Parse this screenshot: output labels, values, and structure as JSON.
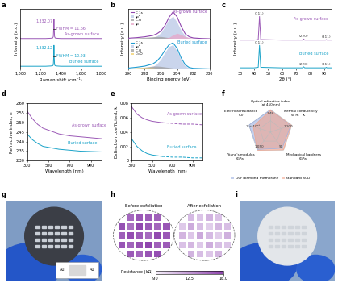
{
  "chart_data": [
    {
      "panel": "a",
      "type": "line",
      "x_label": "Raman shift (cm⁻¹)",
      "y_label": "Intensity (a.u.)",
      "xlim": [
        1000,
        1800
      ],
      "xticks": [
        {
          "value": 1000,
          "label": "1,000"
        },
        {
          "value": 1200,
          "label": "1,200"
        },
        {
          "value": 1400,
          "label": "1,400"
        },
        {
          "value": 1600,
          "label": "1,600"
        },
        {
          "value": 1800,
          "label": "1,800"
        }
      ],
      "ylim": [
        0,
        1.15
      ],
      "tick_labels": "x",
      "x": [
        1000,
        1100,
        1200,
        1250,
        1300,
        1320,
        1326,
        1330,
        1332,
        1334,
        1338,
        1344,
        1360,
        1400,
        1500,
        1600,
        1700,
        1800
      ],
      "series": [
        {
          "label": "As-grown surface",
          "color": "#9b59b6",
          "peak": 1332.07,
          "peak_label": "1,332.07",
          "fwhm": 11.66,
          "fwhm_label": "FWHM = 11.66",
          "values": [
            0.58,
            0.58,
            0.58,
            0.58,
            0.585,
            0.59,
            0.62,
            0.8,
            0.95,
            0.8,
            0.62,
            0.59,
            0.585,
            0.58,
            0.58,
            0.58,
            0.58,
            0.58
          ]
        },
        {
          "label": "Buried surface",
          "color": "#1aa3c8",
          "peak": 1332.12,
          "peak_label": "1,332.12",
          "fwhm": 10.93,
          "fwhm_label": "FWHM = 10.93",
          "values": [
            0.05,
            0.05,
            0.05,
            0.05,
            0.055,
            0.06,
            0.08,
            0.25,
            0.45,
            0.25,
            0.08,
            0.06,
            0.055,
            0.05,
            0.05,
            0.05,
            0.05,
            0.05
          ]
        }
      ]
    },
    {
      "panel": "b",
      "type": "area",
      "x_label": "Binding energy (eV)",
      "y_label": "Intensity (a.u.)",
      "xlim": [
        290,
        280
      ],
      "xticks": [
        290,
        288,
        286,
        284,
        282,
        280
      ],
      "ylim": [
        0,
        1.1
      ],
      "legend": "upper left",
      "x": [
        290,
        289,
        288,
        287,
        286.5,
        286,
        285.5,
        285,
        284.5,
        284,
        283.5,
        283,
        282.5,
        282,
        281,
        280
      ],
      "parts": [
        {
          "annotation": "As-grown surface",
          "series": [
            {
              "name": "C 1s",
              "type": "line",
              "color": "#8e44ad",
              "values": [
                0.02,
                0.04,
                0.07,
                0.12,
                0.18,
                0.28,
                0.48,
                0.78,
                0.98,
                0.8,
                0.45,
                0.18,
                0.07,
                0.03,
                0.01,
                0.0
              ]
            },
            {
              "name": "sp³",
              "type": "area",
              "color": "#b9c7e6",
              "values": [
                0.0,
                0.01,
                0.02,
                0.05,
                0.1,
                0.22,
                0.45,
                0.72,
                0.82,
                0.6,
                0.3,
                0.1,
                0.03,
                0.01,
                0.0,
                0.0
              ]
            },
            {
              "name": "C–O",
              "type": "area",
              "color": "#9e9e9e",
              "values": [
                0.01,
                0.03,
                0.05,
                0.07,
                0.08,
                0.08,
                0.06,
                0.04,
                0.02,
                0.01,
                0.0,
                0.0,
                0.0,
                0.0,
                0.0,
                0.0
              ]
            },
            {
              "name": "sp²",
              "type": "area",
              "color": "#e8a6c8",
              "values": [
                0.0,
                0.0,
                0.0,
                0.0,
                0.0,
                0.01,
                0.02,
                0.05,
                0.14,
                0.2,
                0.15,
                0.08,
                0.04,
                0.02,
                0.0,
                0.0
              ]
            }
          ]
        },
        {
          "annotation": "Buried surface",
          "series": [
            {
              "name": "C 1s",
              "type": "line",
              "color": "#1f9bd1",
              "values": [
                0.03,
                0.06,
                0.1,
                0.18,
                0.28,
                0.45,
                0.68,
                0.88,
                0.95,
                0.75,
                0.4,
                0.15,
                0.05,
                0.02,
                0.01,
                0.0
              ]
            },
            {
              "name": "sp³",
              "type": "area",
              "color": "#b9c7e6",
              "values": [
                0.0,
                0.01,
                0.03,
                0.08,
                0.18,
                0.35,
                0.6,
                0.82,
                0.88,
                0.65,
                0.32,
                0.1,
                0.03,
                0.01,
                0.0,
                0.0
              ]
            },
            {
              "name": "C–O",
              "type": "area",
              "color": "#9e9e9e",
              "values": [
                0.01,
                0.03,
                0.06,
                0.1,
                0.1,
                0.09,
                0.07,
                0.05,
                0.03,
                0.01,
                0.0,
                0.0,
                0.0,
                0.0,
                0.0,
                0.0
              ]
            },
            {
              "name": "C=O",
              "type": "area",
              "color": "#f2d16b",
              "values": [
                0.02,
                0.04,
                0.05,
                0.04,
                0.02,
                0.01,
                0.0,
                0.0,
                0.0,
                0.0,
                0.0,
                0.0,
                0.0,
                0.0,
                0.0,
                0.0
              ]
            }
          ]
        }
      ]
    },
    {
      "panel": "c",
      "type": "line",
      "x_label": "2θ (°)",
      "y_label": "Intensity (a.u.)",
      "xlim": [
        30,
        95
      ],
      "xticks": [
        30,
        40,
        50,
        60,
        70,
        80,
        90
      ],
      "ylim": [
        0,
        1.15
      ],
      "tick_labels": "x",
      "x": [
        30,
        40,
        43,
        43.9,
        44.8,
        60,
        74.5,
        75.3,
        76.1,
        90,
        91.0,
        91.5,
        92.0,
        95
      ],
      "series": [
        {
          "label": "As-grown surface",
          "color": "#9b59b6",
          "values": [
            0.55,
            0.55,
            0.56,
            1.0,
            0.56,
            0.55,
            0.55,
            0.57,
            0.55,
            0.55,
            0.55,
            0.56,
            0.55,
            0.55
          ],
          "peaks": [
            {
              "x": 43.9,
              "label": "(111)"
            },
            {
              "x": 75.3,
              "label": "(220)"
            },
            {
              "x": 91.5,
              "label": "(311)"
            }
          ]
        },
        {
          "label": "Buried surface",
          "color": "#1aa3c8",
          "values": [
            0.02,
            0.02,
            0.03,
            0.45,
            0.03,
            0.02,
            0.02,
            0.04,
            0.02,
            0.02,
            0.02,
            0.03,
            0.02,
            0.02
          ],
          "peaks": [
            {
              "x": 43.9,
              "label": "(111)"
            },
            {
              "x": 75.3,
              "label": "(220)"
            },
            {
              "x": 91.5,
              "label": "(311)"
            }
          ]
        }
      ]
    },
    {
      "panel": "d",
      "type": "line",
      "x_label": "Wavelength (nm)",
      "y_label": "Refractive index, n",
      "xlim": [
        300,
        1000
      ],
      "xticks": [
        300,
        500,
        700,
        900
      ],
      "ylim": [
        2.3,
        2.6
      ],
      "yticks": [
        {
          "value": 2.3,
          "label": "2.30"
        },
        2.35,
        {
          "value": 2.4,
          "label": "2.40"
        },
        2.45,
        {
          "value": 2.5,
          "label": "2.50"
        },
        2.55,
        {
          "value": 2.6,
          "label": "2.60"
        }
      ],
      "x": [
        300,
        350,
        400,
        450,
        500,
        600,
        700,
        800,
        900,
        1000
      ],
      "series": [
        {
          "label": "As-grown surface",
          "color": "#9b59b6",
          "values": [
            2.56,
            2.52,
            2.49,
            2.47,
            2.46,
            2.44,
            2.43,
            2.425,
            2.42,
            2.415
          ]
        },
        {
          "label": "Buried surface",
          "color": "#1aa3c8",
          "values": [
            2.44,
            2.41,
            2.39,
            2.375,
            2.37,
            2.36,
            2.355,
            2.35,
            2.348,
            2.346
          ]
        }
      ]
    },
    {
      "panel": "e",
      "type": "line",
      "x_label": "Wavelength (nm)",
      "y_label": "Extinction coefficient, k",
      "xlim": [
        300,
        1000
      ],
      "xticks": [
        300,
        500,
        700,
        900
      ],
      "ylim": [
        0,
        0.08
      ],
      "yticks": [
        0,
        0.02,
        0.04,
        0.06,
        0.08
      ],
      "series": [
        {
          "label": "As-grown surface",
          "color": "#9b59b6",
          "line_style": "solid",
          "x": [
            300,
            350,
            400,
            450,
            500,
            550,
            600
          ],
          "values": [
            0.075,
            0.065,
            0.06,
            0.057,
            0.055,
            0.054,
            0.053
          ]
        },
        {
          "color": "#9b59b6",
          "line_style": "dashed",
          "x": [
            600,
            700,
            800,
            900,
            1000
          ],
          "values": [
            0.053,
            0.052,
            0.051,
            0.051,
            0.05
          ]
        },
        {
          "label": "Buried surface",
          "color": "#1aa3c8",
          "line_style": "solid",
          "x": [
            300,
            350,
            400,
            450,
            500,
            550,
            600
          ],
          "values": [
            0.03,
            0.02,
            0.014,
            0.01,
            0.008,
            0.007,
            0.006
          ]
        },
        {
          "color": "#1aa3c8",
          "line_style": "dashed",
          "x": [
            600,
            700,
            800,
            900,
            1000
          ],
          "values": [
            0.006,
            0.005,
            0.005,
            0.004,
            0.004
          ]
        }
      ]
    },
    {
      "panel": "f",
      "type": "radar",
      "legend": "upper center",
      "axes": [
        {
          "label": "Optical refractive index\n(at 450 nm)",
          "max": 2.48,
          "max_label": "2.48"
        },
        {
          "label": "Thermal conductivity\nW m⁻¹ K⁻¹",
          "max": 2100,
          "max_label": "2,100"
        },
        {
          "label": "Mechanical hardness\n(GPa)",
          "max": 90,
          "max_label": "90"
        },
        {
          "label": "Young's modulus\n(GPa)",
          "max": 1050,
          "max_label": "1,050"
        },
        {
          "label": "Electrical resistance\n(Ω)",
          "max": 1000000000000000.0,
          "max_label": "1 × 10¹⁵"
        }
      ],
      "series": [
        {
          "name": "Our diamond membrane",
          "color": "#9bb0e0",
          "values": [
            2.43,
            2000,
            80,
            1000,
            1000000000000000.0
          ]
        },
        {
          "name": "Standard SCD",
          "color": "#f0a58f",
          "values": [
            2.38,
            2050,
            88,
            1050,
            800000000000000.0
          ]
        }
      ]
    },
    {
      "panel": "g",
      "type": "image",
      "texts": [
        "Au",
        "Au"
      ]
    },
    {
      "panel": "h",
      "type": "heatmap",
      "maps": [
        {
          "title": "Before exfoliation",
          "cells": [
            [
              null,
              14.5,
              15.2,
              15.0,
              14.8,
              null
            ],
            [
              15.5,
              14.2,
              15.8,
              15.1,
              14.6,
              15.3
            ],
            [
              14.9,
              15.6,
              15.0,
              14.4,
              15.7,
              15.2
            ],
            [
              15.3,
              14.7,
              15.4,
              15.9,
              14.8,
              15.0
            ],
            [
              null,
              15.1,
              14.6,
              15.3,
              15.5,
              null
            ]
          ]
        },
        {
          "title": "After exfoliation",
          "cells": [
            [
              null,
              11.2,
              10.8,
              11.5,
              10.9,
              null
            ],
            [
              10.6,
              11.8,
              11.0,
              10.4,
              11.3,
              11.1
            ],
            [
              11.4,
              10.7,
              11.9,
              11.2,
              10.5,
              11.6
            ],
            [
              10.9,
              11.3,
              10.6,
              11.7,
              11.0,
              10.8
            ],
            [
              null,
              11.5,
              11.1,
              10.7,
              11.4,
              null
            ]
          ]
        }
      ],
      "colorbar": {
        "label": "Resistance (kΩ)",
        "range": [
          9.0,
          16.0
        ],
        "ticks": [
          9.0,
          12.5,
          16.0
        ]
      }
    },
    {
      "panel": "i",
      "type": "image"
    }
  ]
}
